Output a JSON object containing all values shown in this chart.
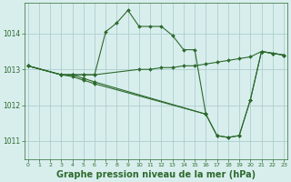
{
  "background_color": "#d8eeed",
  "grid_color": "#aecece",
  "line_color": "#2d6a2d",
  "marker_color": "#2d6a2d",
  "xlabel": "Graphe pression niveau de la mer (hPa)",
  "xlabel_fontsize": 7.0,
  "xticks": [
    0,
    1,
    2,
    3,
    4,
    5,
    6,
    7,
    8,
    9,
    10,
    11,
    12,
    13,
    14,
    15,
    16,
    17,
    18,
    19,
    20,
    21,
    22,
    23
  ],
  "yticks": [
    1011,
    1012,
    1013,
    1014
  ],
  "ylim": [
    1010.5,
    1014.85
  ],
  "xlim": [
    -0.3,
    23.3
  ],
  "series": [
    {
      "x": [
        0,
        3,
        4,
        5,
        6,
        7,
        8,
        9,
        10,
        11,
        12,
        13,
        14,
        15,
        16
      ],
      "y": [
        1013.1,
        1012.85,
        1012.85,
        1012.85,
        1012.85,
        1014.05,
        1014.3,
        1014.65,
        1014.2,
        1014.2,
        1014.2,
        1013.95,
        1013.55,
        1013.55,
        1011.75
      ]
    },
    {
      "x": [
        0,
        3,
        4,
        5,
        6,
        10,
        11,
        12,
        13,
        14,
        15,
        16,
        17,
        18,
        19,
        20,
        21,
        22,
        23
      ],
      "y": [
        1013.1,
        1012.85,
        1012.85,
        1012.85,
        1012.85,
        1013.0,
        1013.0,
        1013.05,
        1013.05,
        1013.1,
        1013.1,
        1013.15,
        1013.2,
        1013.25,
        1013.3,
        1013.35,
        1013.5,
        1013.45,
        1013.4
      ]
    },
    {
      "x": [
        0,
        3,
        4,
        5,
        6,
        16,
        17,
        18,
        19,
        20,
        21,
        22,
        23
      ],
      "y": [
        1013.1,
        1012.85,
        1012.85,
        1012.75,
        1012.65,
        1011.75,
        1011.15,
        1011.1,
        1011.15,
        1012.15,
        1013.5,
        1013.45,
        1013.4
      ]
    },
    {
      "x": [
        0,
        3,
        4,
        5,
        6,
        16,
        17,
        18,
        19,
        20,
        21,
        22,
        23
      ],
      "y": [
        1013.1,
        1012.85,
        1012.8,
        1012.7,
        1012.6,
        1011.75,
        1011.15,
        1011.1,
        1011.15,
        1012.15,
        1013.5,
        1013.45,
        1013.4
      ]
    }
  ]
}
